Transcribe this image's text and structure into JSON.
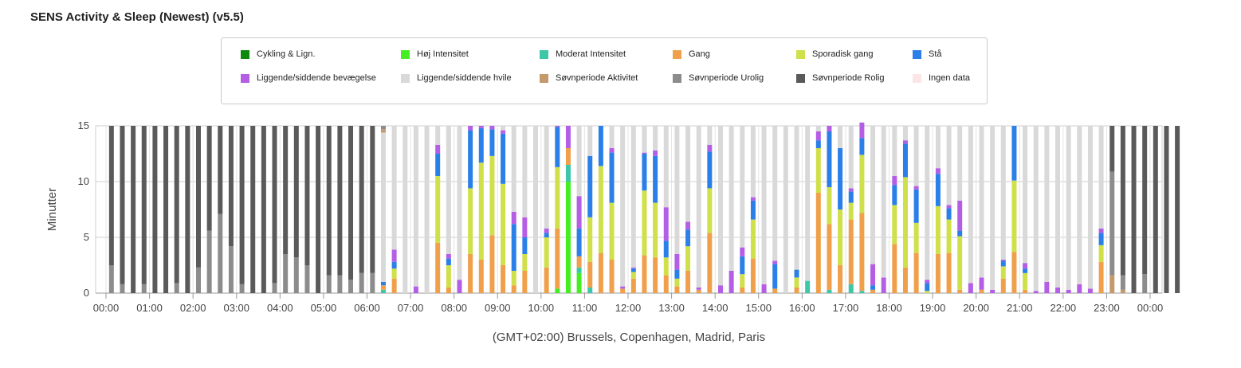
{
  "title": "SENS Activity & Sleep (Newest) (v5.5)",
  "colors": {
    "cycling": "#0d8a0d",
    "high": "#44ee22",
    "moderate": "#3cc7a8",
    "walk": "#f0a04b",
    "sporadic": "#cfe04a",
    "stand": "#2a7fe8",
    "lying_move": "#b45ee6",
    "lying_rest": "#d9d9d9",
    "sleep_active": "#c49a6c",
    "sleep_restless": "#8c8c8c",
    "sleep_calm": "#5a5a5a",
    "no_data": "#fbe5e5"
  },
  "legend": [
    {
      "label": "Cykling & Lign.",
      "key": "cycling"
    },
    {
      "label": "Høj Intensitet",
      "key": "high"
    },
    {
      "label": "Moderat Intensitet",
      "key": "moderate"
    },
    {
      "label": "Gang",
      "key": "walk"
    },
    {
      "label": "Sporadisk gang",
      "key": "sporadic"
    },
    {
      "label": "Stå",
      "key": "stand"
    },
    {
      "label": "Liggende/siddende bevægelse",
      "key": "lying_move"
    },
    {
      "label": "Liggende/siddende hvile",
      "key": "lying_rest"
    },
    {
      "label": "Søvnperiode Aktivitet",
      "key": "sleep_active"
    },
    {
      "label": "Søvnperiode Urolig",
      "key": "sleep_restless"
    },
    {
      "label": "Søvnperiode Rolig",
      "key": "sleep_calm"
    },
    {
      "label": "Ingen data",
      "key": "no_data"
    }
  ],
  "chart_data": {
    "type": "bar",
    "stacked": true,
    "interval_minutes": 15,
    "ylabel": "Minutter",
    "xlabel": "(GMT+02:00) Brussels, Copenhagen, Madrid, Paris",
    "ylim": [
      0,
      15
    ],
    "yticks": [
      0,
      5,
      10,
      15
    ],
    "xticks": [
      "00:00",
      "01:00",
      "02:00",
      "03:00",
      "04:00",
      "05:00",
      "06:00",
      "07:00",
      "08:00",
      "09:00",
      "10:00",
      "11:00",
      "12:00",
      "13:00",
      "14:00",
      "15:00",
      "16:00",
      "17:00",
      "18:00",
      "19:00",
      "20:00",
      "21:00",
      "22:00",
      "23:00",
      "00:00"
    ],
    "grid": true,
    "legend_position": "top",
    "bars": [
      {
        "sleep_restless": 2.5,
        "sleep_calm": 12.5
      },
      {
        "sleep_restless": 0.8,
        "sleep_calm": 14.2
      },
      {
        "sleep_calm": 15
      },
      {
        "sleep_restless": 0.8,
        "sleep_calm": 14.2
      },
      {
        "sleep_calm": 15
      },
      {
        "sleep_calm": 15
      },
      {
        "sleep_restless": 0.9,
        "sleep_calm": 14.1
      },
      {
        "sleep_calm": 15
      },
      {
        "sleep_restless": 2.3,
        "sleep_calm": 12.7
      },
      {
        "sleep_restless": 5.6,
        "sleep_calm": 9.4
      },
      {
        "sleep_restless": 7.1,
        "sleep_calm": 7.9
      },
      {
        "sleep_restless": 4.2,
        "sleep_calm": 10.8
      },
      {
        "sleep_restless": 0.8,
        "sleep_calm": 14.2
      },
      {
        "sleep_calm": 15
      },
      {
        "sleep_calm": 15
      },
      {
        "sleep_restless": 0.9,
        "sleep_calm": 14.1
      },
      {
        "sleep_restless": 3.5,
        "sleep_calm": 11.5
      },
      {
        "sleep_restless": 3.2,
        "sleep_calm": 11.8
      },
      {
        "sleep_restless": 2.5,
        "sleep_calm": 12.5
      },
      {
        "sleep_calm": 15
      },
      {
        "sleep_restless": 1.6,
        "sleep_calm": 13.4
      },
      {
        "sleep_restless": 1.6,
        "sleep_calm": 13.4
      },
      {
        "sleep_restless": 1.2,
        "sleep_calm": 13.8
      },
      {
        "sleep_restless": 1.8,
        "sleep_calm": 13.2
      },
      {
        "sleep_restless": 1.8,
        "sleep_calm": 13.2
      },
      {
        "sleep_active": 0.3,
        "sleep_restless": 0.3,
        "moderate": 0.3,
        "walk": 0.4,
        "stand": 0.3,
        "lying_rest": 13.4
      },
      {
        "walk": 1.3,
        "sporadic": 0.9,
        "stand": 0.6,
        "lying_move": 1.1,
        "lying_rest": 11.1
      },
      {
        "lying_rest": 15
      },
      {
        "lying_move": 0.6,
        "lying_rest": 14.4
      },
      {
        "lying_rest": 15
      },
      {
        "walk": 4.5,
        "sporadic": 6.0,
        "stand": 2.0,
        "lying_move": 0.8,
        "lying_rest": 1.7
      },
      {
        "walk": 0.5,
        "sporadic": 2.0,
        "stand": 0.6,
        "lying_move": 0.4,
        "lying_rest": 11.5
      },
      {
        "lying_move": 1.2,
        "lying_rest": 13.8
      },
      {
        "walk": 3.5,
        "sporadic": 5.9,
        "stand": 5.2,
        "lying_move": 0.4
      },
      {
        "walk": 3.0,
        "sporadic": 8.7,
        "stand": 3.1,
        "lying_move": 0.2
      },
      {
        "walk": 5.2,
        "sporadic": 7.1,
        "stand": 2.4,
        "lying_move": 0.3
      },
      {
        "walk": 2.5,
        "sporadic": 7.3,
        "stand": 4.5,
        "lying_move": 0.3,
        "lying_rest": 0.4
      },
      {
        "walk": 0.7,
        "sporadic": 1.3,
        "stand": 4.2,
        "lying_move": 1.1,
        "lying_rest": 7.7
      },
      {
        "walk": 2.0,
        "sporadic": 1.5,
        "stand": 1.5,
        "lying_move": 1.8,
        "lying_rest": 8.2
      },
      {
        "lying_rest": 15
      },
      {
        "walk": 2.3,
        "sporadic": 2.7,
        "stand": 0.4,
        "lying_move": 0.4,
        "lying_rest": 9.2
      },
      {
        "high": 0.4,
        "walk": 5.4,
        "sporadic": 5.5,
        "stand": 3.6,
        "lying_move": 0.1
      },
      {
        "high": 10.0,
        "moderate": 1.5,
        "walk": 1.5,
        "lying_move": 2.0
      },
      {
        "high": 1.8,
        "moderate": 0.5,
        "walk": 1.0,
        "stand": 2.5,
        "lying_move": 2.9,
        "lying_rest": 6.3
      },
      {
        "moderate": 0.5,
        "walk": 2.3,
        "sporadic": 4.0,
        "stand": 5.5,
        "lying_rest": 2.7
      },
      {
        "walk": 3.6,
        "sporadic": 7.8,
        "stand": 3.6
      },
      {
        "walk": 3.0,
        "sporadic": 5.1,
        "stand": 4.5,
        "lying_move": 0.4,
        "lying_rest": 2.0
      },
      {
        "walk": 0.4,
        "lying_move": 0.2,
        "lying_rest": 14.4
      },
      {
        "walk": 1.3,
        "sporadic": 0.6,
        "stand": 0.3,
        "lying_move": 0.1,
        "lying_rest": 12.7
      },
      {
        "walk": 3.4,
        "sporadic": 5.8,
        "stand": 3.3,
        "lying_move": 0.1,
        "lying_rest": 2.4
      },
      {
        "walk": 3.2,
        "sporadic": 4.9,
        "stand": 4.2,
        "lying_move": 0.5,
        "lying_rest": 2.2
      },
      {
        "walk": 1.6,
        "sporadic": 1.6,
        "stand": 1.5,
        "lying_move": 3.0,
        "lying_rest": 7.3
      },
      {
        "walk": 0.6,
        "sporadic": 0.7,
        "stand": 0.8,
        "lying_move": 1.4,
        "lying_rest": 11.5
      },
      {
        "walk": 2.0,
        "sporadic": 2.2,
        "stand": 1.5,
        "lying_move": 0.7,
        "lying_rest": 8.6
      },
      {
        "walk": 0.3,
        "lying_move": 0.2,
        "lying_rest": 14.5
      },
      {
        "walk": 5.4,
        "sporadic": 4.0,
        "stand": 3.3,
        "lying_move": 0.6,
        "lying_rest": 1.7
      },
      {
        "lying_move": 0.7,
        "lying_rest": 14.3
      },
      {
        "lying_move": 2.0,
        "lying_rest": 13.0
      },
      {
        "walk": 0.5,
        "sporadic": 1.2,
        "stand": 1.6,
        "lying_move": 0.8,
        "lying_rest": 10.9
      },
      {
        "walk": 3.1,
        "sporadic": 3.5,
        "stand": 1.7,
        "lying_move": 0.3,
        "lying_rest": 6.4
      },
      {
        "lying_move": 0.8,
        "lying_rest": 14.2
      },
      {
        "walk": 0.4,
        "stand": 2.2,
        "lying_move": 0.3,
        "lying_rest": 12.1
      },
      {
        "lying_rest": 15
      },
      {
        "walk": 0.5,
        "sporadic": 0.9,
        "stand": 0.7,
        "lying_rest": 12.9
      },
      {
        "moderate": 1.1,
        "lying_rest": 13.9
      },
      {
        "walk": 9.0,
        "sporadic": 4.0,
        "stand": 0.7,
        "lying_move": 0.8,
        "lying_rest": 0.5
      },
      {
        "moderate": 0.3,
        "walk": 5.9,
        "sporadic": 3.3,
        "stand": 5.0,
        "lying_move": 0.5
      },
      {
        "walk": 2.5,
        "sporadic": 5.0,
        "stand": 5.5,
        "lying_rest": 2.0
      },
      {
        "moderate": 0.8,
        "walk": 5.8,
        "sporadic": 1.5,
        "stand": 1.0,
        "lying_move": 0.3,
        "lying_rest": 5.6
      },
      {
        "moderate": 0.2,
        "walk": 7.0,
        "sporadic": 5.2,
        "stand": 1.5,
        "lying_move": 1.4
      },
      {
        "walk": 0.3,
        "stand": 0.4,
        "lying_move": 1.9,
        "lying_rest": 12.4
      },
      {
        "lying_move": 1.4,
        "lying_rest": 13.6
      },
      {
        "walk": 4.4,
        "sporadic": 3.5,
        "stand": 1.8,
        "lying_move": 0.8,
        "lying_rest": 4.5
      },
      {
        "walk": 2.3,
        "sporadic": 8.1,
        "stand": 3.0,
        "lying_move": 0.3,
        "lying_rest": 1.3
      },
      {
        "walk": 3.6,
        "sporadic": 2.7,
        "stand": 3.0,
        "lying_move": 0.3,
        "lying_rest": 5.4
      },
      {
        "sporadic": 0.2,
        "stand": 0.7,
        "lying_move": 0.3,
        "lying_rest": 13.8
      },
      {
        "walk": 3.5,
        "sporadic": 4.3,
        "stand": 2.9,
        "lying_move": 0.5,
        "lying_rest": 3.8
      },
      {
        "walk": 3.6,
        "sporadic": 3.0,
        "stand": 1.0,
        "lying_move": 0.3,
        "lying_rest": 7.1
      },
      {
        "walk": 0.3,
        "sporadic": 4.8,
        "stand": 0.5,
        "lying_move": 2.7,
        "lying_rest": 6.7
      },
      {
        "lying_move": 0.9,
        "lying_rest": 14.1
      },
      {
        "walk": 0.3,
        "lying_move": 1.1,
        "lying_rest": 13.6
      },
      {
        "lying_move": 0.3,
        "lying_rest": 14.7
      },
      {
        "walk": 1.3,
        "sporadic": 1.1,
        "stand": 0.5,
        "lying_move": 0.1,
        "lying_rest": 12.0
      },
      {
        "walk": 3.7,
        "sporadic": 6.4,
        "stand": 4.9
      },
      {
        "walk": 0.3,
        "sporadic": 1.5,
        "stand": 0.4,
        "lying_move": 0.5,
        "lying_rest": 12.3
      },
      {
        "lying_move": 0.2,
        "lying_rest": 14.8
      },
      {
        "lying_move": 1.0,
        "lying_rest": 14.0
      },
      {
        "lying_move": 0.5,
        "lying_rest": 14.5
      },
      {
        "lying_move": 0.3,
        "lying_rest": 14.7
      },
      {
        "lying_move": 0.8,
        "lying_rest": 14.2
      },
      {
        "lying_move": 0.4,
        "lying_rest": 14.6
      },
      {
        "walk": 2.8,
        "sporadic": 1.5,
        "stand": 1.1,
        "lying_move": 0.4,
        "lying_rest": 9.2
      },
      {
        "sleep_active": 1.6,
        "sleep_restless": 9.3,
        "sleep_calm": 4.1
      },
      {
        "sleep_active": 0.3,
        "sleep_restless": 1.3,
        "sleep_calm": 13.4
      },
      {
        "sleep_calm": 15
      },
      {
        "sleep_restless": 1.7,
        "sleep_calm": 13.3
      },
      {
        "sleep_calm": 15
      },
      {
        "sleep_calm": 15
      },
      {
        "sleep_calm": 15
      }
    ]
  }
}
